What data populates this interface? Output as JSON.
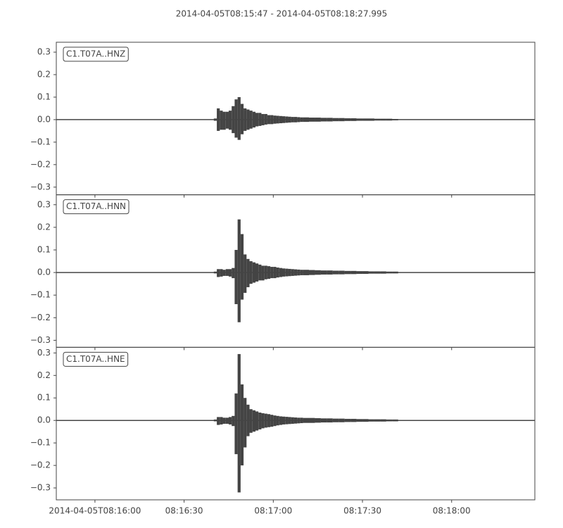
{
  "chart_data": [
    {
      "type": "waveform",
      "title": "2014-04-05T08:15:47  -  2014-04-05T08:18:27.995",
      "label": "C1.T07A..HNZ",
      "color": "#444444",
      "ylim": [
        -0.334,
        0.344
      ],
      "yticks": [
        {
          "value": -0.3,
          "label": "−0.3"
        },
        {
          "value": -0.2,
          "label": "−0.2"
        },
        {
          "value": -0.1,
          "label": "−0.1"
        },
        {
          "value": 0,
          "label": "0.0"
        },
        0.1,
        0.2,
        0.3
      ],
      "x": [
        "2014-04-05T08:16:40",
        "2014-04-05T08:16:41",
        "2014-04-05T08:16:42",
        "2014-04-05T08:16:43",
        "2014-04-05T08:16:44",
        "2014-04-05T08:16:45",
        "2014-04-05T08:16:46",
        "2014-04-05T08:16:47",
        "2014-04-05T08:16:48",
        "2014-04-05T08:16:49",
        "2014-04-05T08:16:50",
        "2014-04-05T08:16:51",
        "2014-04-05T08:16:52",
        "2014-04-05T08:16:53",
        "2014-04-05T08:16:54",
        "2014-04-05T08:16:55",
        "2014-04-05T08:16:56",
        "2014-04-05T08:16:57",
        "2014-04-05T08:16:58",
        "2014-04-05T08:16:59",
        "2014-04-05T08:17:00",
        "2014-04-05T08:17:01",
        "2014-04-05T08:17:02",
        "2014-04-05T08:17:03",
        "2014-04-05T08:17:04",
        "2014-04-05T08:17:05",
        "2014-04-05T08:17:06",
        "2014-04-05T08:17:07",
        "2014-04-05T08:17:08",
        "2014-04-05T08:17:09",
        "2014-04-05T08:17:10",
        "2014-04-05T08:17:12",
        "2014-04-05T08:17:14",
        "2014-04-05T08:17:16",
        "2014-04-05T08:17:18",
        "2014-04-05T08:17:20",
        "2014-04-05T08:17:22",
        "2014-04-05T08:17:24",
        "2014-04-05T08:17:26",
        "2014-04-05T08:17:28",
        "2014-04-05T08:17:30",
        "2014-04-05T08:17:32",
        "2014-04-05T08:17:34",
        "2014-04-05T08:17:36",
        "2014-04-05T08:17:38",
        "2014-04-05T08:17:40"
      ],
      "max": [
        0.005,
        0.05,
        0.04,
        0.035,
        0.035,
        0.04,
        0.06,
        0.09,
        0.1,
        0.07,
        0.05,
        0.045,
        0.04,
        0.035,
        0.03,
        0.03,
        0.025,
        0.025,
        0.02,
        0.02,
        0.018,
        0.017,
        0.016,
        0.015,
        0.014,
        0.013,
        0.012,
        0.012,
        0.011,
        0.01,
        0.01,
        0.009,
        0.009,
        0.008,
        0.008,
        0.007,
        0.007,
        0.006,
        0.006,
        0.005,
        0.005,
        0.005,
        0.004,
        0.004,
        0.004,
        0.003
      ],
      "min": [
        -0.005,
        -0.05,
        -0.045,
        -0.045,
        -0.04,
        -0.045,
        -0.06,
        -0.08,
        -0.09,
        -0.065,
        -0.05,
        -0.045,
        -0.04,
        -0.035,
        -0.03,
        -0.028,
        -0.025,
        -0.022,
        -0.02,
        -0.02,
        -0.018,
        -0.017,
        -0.016,
        -0.015,
        -0.014,
        -0.013,
        -0.012,
        -0.012,
        -0.011,
        -0.01,
        -0.01,
        -0.009,
        -0.009,
        -0.008,
        -0.008,
        -0.007,
        -0.007,
        -0.006,
        -0.006,
        -0.005,
        -0.005,
        -0.005,
        -0.004,
        -0.004,
        -0.004,
        -0.003
      ]
    },
    {
      "type": "waveform",
      "label": "C1.T07A..HNN",
      "color": "#444444",
      "ylim": [
        -0.331,
        0.344
      ],
      "yticks": [
        {
          "value": -0.3,
          "label": "−0.3"
        },
        {
          "value": -0.2,
          "label": "−0.2"
        },
        {
          "value": -0.1,
          "label": "−0.1"
        },
        {
          "value": 0,
          "label": "0.0"
        },
        0.1,
        0.2,
        0.3
      ],
      "x": [
        "2014-04-05T08:16:40",
        "2014-04-05T08:16:41",
        "2014-04-05T08:16:42",
        "2014-04-05T08:16:43",
        "2014-04-05T08:16:44",
        "2014-04-05T08:16:45",
        "2014-04-05T08:16:46",
        "2014-04-05T08:16:47",
        "2014-04-05T08:16:48",
        "2014-04-05T08:16:49",
        "2014-04-05T08:16:50",
        "2014-04-05T08:16:51",
        "2014-04-05T08:16:52",
        "2014-04-05T08:16:53",
        "2014-04-05T08:16:54",
        "2014-04-05T08:16:55",
        "2014-04-05T08:16:56",
        "2014-04-05T08:16:57",
        "2014-04-05T08:16:58",
        "2014-04-05T08:16:59",
        "2014-04-05T08:17:00",
        "2014-04-05T08:17:01",
        "2014-04-05T08:17:02",
        "2014-04-05T08:17:03",
        "2014-04-05T08:17:04",
        "2014-04-05T08:17:05",
        "2014-04-05T08:17:06",
        "2014-04-05T08:17:07",
        "2014-04-05T08:17:08",
        "2014-04-05T08:17:09",
        "2014-04-05T08:17:10",
        "2014-04-05T08:17:12",
        "2014-04-05T08:17:14",
        "2014-04-05T08:17:16",
        "2014-04-05T08:17:18",
        "2014-04-05T08:17:20",
        "2014-04-05T08:17:22",
        "2014-04-05T08:17:24",
        "2014-04-05T08:17:26",
        "2014-04-05T08:17:28",
        "2014-04-05T08:17:30",
        "2014-04-05T08:17:32",
        "2014-04-05T08:17:34",
        "2014-04-05T08:17:36",
        "2014-04-05T08:17:38",
        "2014-04-05T08:17:40"
      ],
      "max": [
        0.004,
        0.015,
        0.015,
        0.012,
        0.015,
        0.015,
        0.02,
        0.1,
        0.235,
        0.17,
        0.08,
        0.06,
        0.05,
        0.045,
        0.04,
        0.035,
        0.03,
        0.03,
        0.028,
        0.025,
        0.025,
        0.022,
        0.02,
        0.018,
        0.017,
        0.016,
        0.015,
        0.014,
        0.013,
        0.012,
        0.012,
        0.011,
        0.01,
        0.009,
        0.009,
        0.008,
        0.008,
        0.007,
        0.007,
        0.006,
        0.006,
        0.005,
        0.005,
        0.005,
        0.004,
        0.004
      ],
      "min": [
        -0.004,
        -0.02,
        -0.018,
        -0.015,
        -0.015,
        -0.018,
        -0.025,
        -0.14,
        -0.22,
        -0.12,
        -0.09,
        -0.065,
        -0.05,
        -0.045,
        -0.04,
        -0.035,
        -0.035,
        -0.03,
        -0.028,
        -0.025,
        -0.025,
        -0.022,
        -0.02,
        -0.018,
        -0.017,
        -0.016,
        -0.015,
        -0.014,
        -0.013,
        -0.012,
        -0.012,
        -0.011,
        -0.01,
        -0.009,
        -0.009,
        -0.008,
        -0.008,
        -0.007,
        -0.007,
        -0.006,
        -0.006,
        -0.005,
        -0.005,
        -0.005,
        -0.004,
        -0.004
      ]
    },
    {
      "type": "waveform",
      "label": "C1.T07A..HNE",
      "color": "#444444",
      "ylim": [
        -0.353,
        0.325
      ],
      "yticks": [
        {
          "value": -0.3,
          "label": "−0.3"
        },
        {
          "value": -0.2,
          "label": "−0.2"
        },
        {
          "value": -0.1,
          "label": "−0.1"
        },
        {
          "value": 0,
          "label": "0.0"
        },
        0.1,
        0.2,
        0.3
      ],
      "xlim": [
        "2014-04-05T08:15:47",
        "2014-04-05T08:18:27.995"
      ],
      "xticks": [
        {
          "value": "2014-04-05T08:16:00",
          "label": "2014-04-05T08:16:00"
        },
        {
          "value": "2014-04-05T08:16:30",
          "label": "08:16:30"
        },
        {
          "value": "2014-04-05T08:17:00",
          "label": "08:17:00"
        },
        {
          "value": "2014-04-05T08:17:30",
          "label": "08:17:30"
        },
        {
          "value": "2014-04-05T08:18:00",
          "label": "08:18:00"
        }
      ],
      "x": [
        "2014-04-05T08:16:40",
        "2014-04-05T08:16:41",
        "2014-04-05T08:16:42",
        "2014-04-05T08:16:43",
        "2014-04-05T08:16:44",
        "2014-04-05T08:16:45",
        "2014-04-05T08:16:46",
        "2014-04-05T08:16:47",
        "2014-04-05T08:16:48",
        "2014-04-05T08:16:49",
        "2014-04-05T08:16:50",
        "2014-04-05T08:16:51",
        "2014-04-05T08:16:52",
        "2014-04-05T08:16:53",
        "2014-04-05T08:16:54",
        "2014-04-05T08:16:55",
        "2014-04-05T08:16:56",
        "2014-04-05T08:16:57",
        "2014-04-05T08:16:58",
        "2014-04-05T08:16:59",
        "2014-04-05T08:17:00",
        "2014-04-05T08:17:01",
        "2014-04-05T08:17:02",
        "2014-04-05T08:17:03",
        "2014-04-05T08:17:04",
        "2014-04-05T08:17:05",
        "2014-04-05T08:17:06",
        "2014-04-05T08:17:07",
        "2014-04-05T08:17:08",
        "2014-04-05T08:17:09",
        "2014-04-05T08:17:10",
        "2014-04-05T08:17:12",
        "2014-04-05T08:17:14",
        "2014-04-05T08:17:16",
        "2014-04-05T08:17:18",
        "2014-04-05T08:17:20",
        "2014-04-05T08:17:22",
        "2014-04-05T08:17:24",
        "2014-04-05T08:17:26",
        "2014-04-05T08:17:28",
        "2014-04-05T08:17:30",
        "2014-04-05T08:17:32",
        "2014-04-05T08:17:34",
        "2014-04-05T08:17:36",
        "2014-04-05T08:17:38",
        "2014-04-05T08:17:40"
      ],
      "max": [
        0.004,
        0.015,
        0.015,
        0.012,
        0.012,
        0.015,
        0.02,
        0.12,
        0.295,
        0.16,
        0.1,
        0.07,
        0.05,
        0.045,
        0.04,
        0.035,
        0.032,
        0.03,
        0.028,
        0.025,
        0.022,
        0.02,
        0.018,
        0.017,
        0.016,
        0.015,
        0.014,
        0.013,
        0.012,
        0.012,
        0.011,
        0.011,
        0.01,
        0.009,
        0.009,
        0.008,
        0.008,
        0.007,
        0.007,
        0.006,
        0.006,
        0.005,
        0.005,
        0.005,
        0.004,
        0.004
      ],
      "min": [
        -0.004,
        -0.02,
        -0.018,
        -0.015,
        -0.015,
        -0.018,
        -0.025,
        -0.15,
        -0.32,
        -0.2,
        -0.12,
        -0.07,
        -0.055,
        -0.05,
        -0.045,
        -0.04,
        -0.035,
        -0.032,
        -0.03,
        -0.028,
        -0.025,
        -0.022,
        -0.02,
        -0.018,
        -0.017,
        -0.016,
        -0.015,
        -0.014,
        -0.013,
        -0.012,
        -0.011,
        -0.011,
        -0.01,
        -0.009,
        -0.009,
        -0.008,
        -0.008,
        -0.007,
        -0.007,
        -0.006,
        -0.006,
        -0.005,
        -0.005,
        -0.005,
        -0.004,
        -0.004
      ]
    }
  ]
}
